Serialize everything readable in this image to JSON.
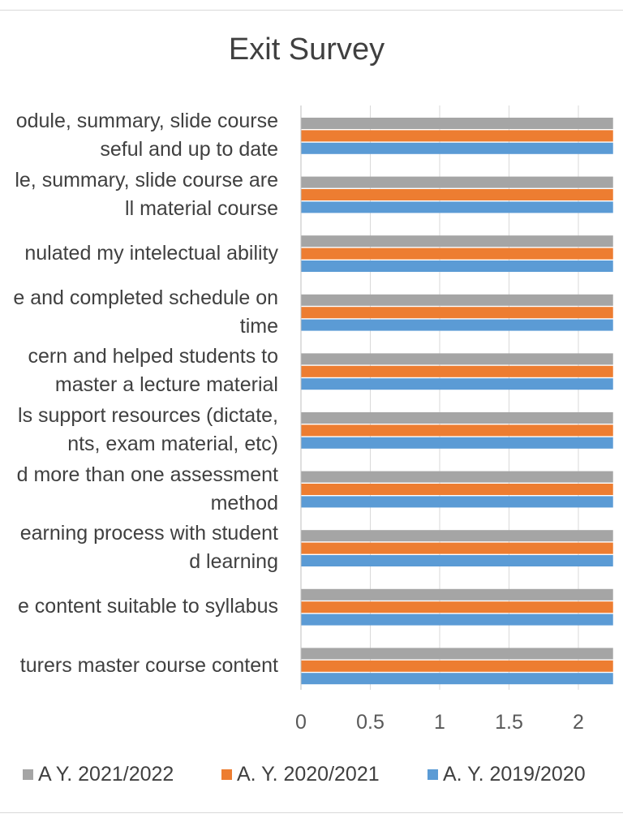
{
  "chart_data": {
    "type": "bar",
    "orientation": "horizontal",
    "title": "Exit Survey",
    "xlabel": "",
    "ylabel": "",
    "xlim": [
      0,
      2.25
    ],
    "x_ticks": [
      "0",
      "0.5",
      "1",
      "1.5",
      "2"
    ],
    "grid": "vertical",
    "legend_position": "bottom",
    "categories": [
      [
        "odule, summary, slide course",
        "seful and up to date"
      ],
      [
        "le, summary, slide course are",
        "ll material course"
      ],
      [
        "nulated my intelectual ability"
      ],
      [
        "e and completed schedule on",
        "time"
      ],
      [
        "cern and helped students to",
        "master a lecture material"
      ],
      [
        "ls support resources (dictate,",
        "nts, exam material, etc)"
      ],
      [
        "d more than one assessment",
        "method"
      ],
      [
        "earning process with student",
        "d learning"
      ],
      [
        "e content suitable to syllabus"
      ],
      [
        "turers master course content"
      ]
    ],
    "series": [
      {
        "name": "A Y. 2021/2022",
        "color": "#a5a5a5",
        "values": [
          2.25,
          2.25,
          2.25,
          2.25,
          2.25,
          2.25,
          2.25,
          2.25,
          2.25,
          2.25
        ]
      },
      {
        "name": "A. Y. 2020/2021",
        "color": "#ed7d31",
        "values": [
          2.25,
          2.25,
          2.25,
          2.25,
          2.25,
          2.25,
          2.25,
          2.25,
          2.25,
          2.25
        ]
      },
      {
        "name": "A. Y. 2019/2020",
        "color": "#5b9bd5",
        "values": [
          2.25,
          2.25,
          2.25,
          2.25,
          2.25,
          2.25,
          2.25,
          2.25,
          2.25,
          2.25
        ]
      }
    ]
  }
}
